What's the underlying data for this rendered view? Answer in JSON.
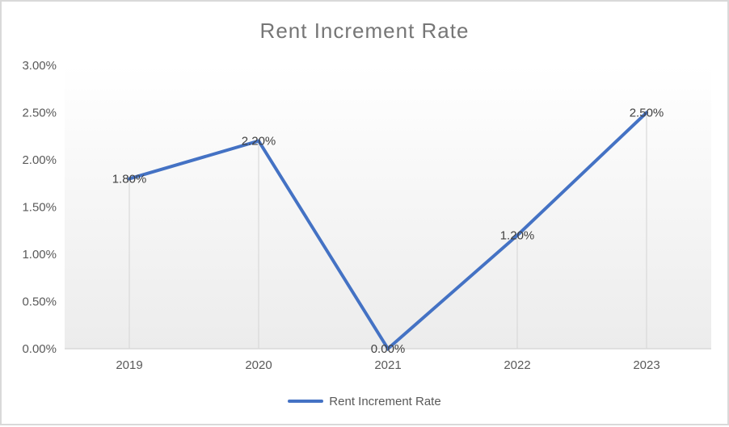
{
  "chart": {
    "title": "Rent Increment Rate",
    "legend": {
      "label": "Rent Increment Rate",
      "position": "bottom"
    },
    "colors": {
      "series_line": "#4472C4",
      "title_text": "#767676",
      "axis_text": "#595959",
      "data_label_text": "#404040",
      "axis_line": "#d9d9d9",
      "drop_line": "#d9d9d9",
      "chart_border": "#d9d9d9",
      "plot_gradient_top": "#ffffff",
      "plot_gradient_bottom": "#ececec"
    }
  },
  "chart_data": {
    "type": "line",
    "title": "Rent Increment Rate",
    "categories": [
      "2019",
      "2020",
      "2021",
      "2022",
      "2023"
    ],
    "series": [
      {
        "name": "Rent Increment Rate",
        "values": [
          1.8,
          2.2,
          0.0,
          1.2,
          2.5
        ]
      }
    ],
    "data_labels": [
      "1.80%",
      "2.20%",
      "0.00%",
      "1.20%",
      "2.50%"
    ],
    "data_label_position": "center",
    "xlabel": "",
    "ylabel": "",
    "ylim": [
      0,
      3
    ],
    "ytick_step": 0.5,
    "ytick_labels": [
      "0.00%",
      "0.50%",
      "1.00%",
      "1.50%",
      "2.00%",
      "2.50%",
      "3.00%"
    ],
    "ytick_format": "percent",
    "grid": false,
    "drop_lines": true,
    "legend_position": "bottom"
  }
}
